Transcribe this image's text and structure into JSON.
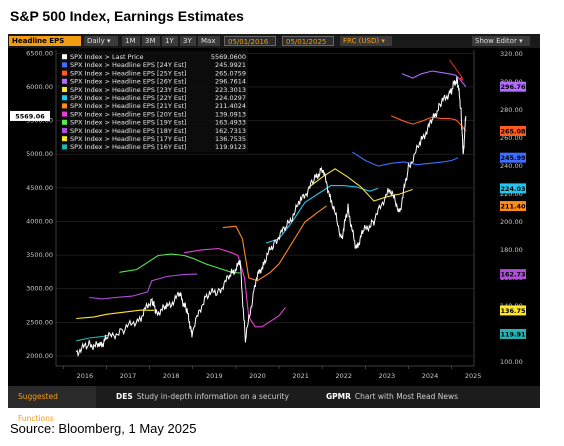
{
  "page": {
    "title": "S&P 500 Index, Earnings Estimates",
    "source": "Source: Bloomberg, 1 May 2025"
  },
  "toolbar": {
    "security": "Headline EPS",
    "period": "Daily",
    "ranges": [
      "1M",
      "3M",
      "1Y",
      "3Y",
      "Max"
    ],
    "start_date": "05/01/2016",
    "end_date": "05/01/2025",
    "currency": "FRC (USD)",
    "editor": "Show Editor"
  },
  "footer": {
    "suggested": "Suggested Functions",
    "functions": [
      {
        "code": "DES",
        "label": "Study in-depth information on a security"
      },
      {
        "code": "GPMR",
        "label": "Chart with Most Read News"
      }
    ]
  },
  "colors": {
    "background": "#000000",
    "price": "#ffffff",
    "eps24": "#3f6dff",
    "eps25": "#ff5a1f",
    "eps26": "#b26cff",
    "eps23": "#f7e33c",
    "eps22": "#1ec8f0",
    "eps21": "#ff8a1a",
    "eps20": "#e83fd6",
    "eps19": "#58e84e",
    "eps18": "#b04fd8",
    "eps17": "#ffe82a",
    "eps16": "#25b4b4"
  },
  "chart_data": {
    "type": "line",
    "x_axis": {
      "ticks": [
        "2016",
        "2017",
        "2018",
        "2019",
        "2020",
        "2021",
        "2022",
        "2023",
        "2024",
        "2025"
      ],
      "range": [
        "2016-01",
        "2025-05"
      ]
    },
    "left_axis": {
      "ticks": [
        2000,
        2500,
        3000,
        3500,
        4000,
        4500,
        5000,
        5500,
        6000,
        6500
      ],
      "range": [
        1850,
        6550
      ]
    },
    "right_axis": {
      "ticks": [
        100,
        120,
        140,
        160,
        180,
        200,
        220,
        240,
        260,
        280,
        300,
        320
      ],
      "range": [
        97,
        323
      ]
    },
    "price_label": "5569.06",
    "legend": [
      {
        "name": "SPX Index > Last Price",
        "value": "5569.0600",
        "color_key": "price"
      },
      {
        "name": "SPX Index > Headline EPS [24Y Est]",
        "value": "245.9921",
        "color_key": "eps24"
      },
      {
        "name": "SPX Index > Headline EPS [25Y Est]",
        "value": "265.0759",
        "color_key": "eps25"
      },
      {
        "name": "SPX Index > Headline EPS [26Y Est]",
        "value": "296.7614",
        "color_key": "eps26"
      },
      {
        "name": "SPX Index > Headline EPS [23Y Est]",
        "value": "223.3013",
        "color_key": "eps23"
      },
      {
        "name": "SPX Index > Headline EPS [22Y Est]",
        "value": "224.0297",
        "color_key": "eps22"
      },
      {
        "name": "SPX Index > Headline EPS [21Y Est]",
        "value": "211.4024",
        "color_key": "eps21"
      },
      {
        "name": "SPX Index > Headline EPS [20Y Est]",
        "value": "139.0913",
        "color_key": "eps20"
      },
      {
        "name": "SPX Index > Headline EPS [19Y Est]",
        "value": "163.4933",
        "color_key": "eps19"
      },
      {
        "name": "SPX Index > Headline EPS [18Y Est]",
        "value": "162.7313",
        "color_key": "eps18"
      },
      {
        "name": "SPX Index > Headline EPS [17Y Est]",
        "value": "136.7535",
        "color_key": "eps17"
      },
      {
        "name": "SPX Index > Headline EPS [16Y Est]",
        "value": "119.9123",
        "color_key": "eps16"
      }
    ],
    "right_labels": [
      {
        "text": "296.76",
        "value": 296.76,
        "color_key": "eps26"
      },
      {
        "text": "265.08",
        "value": 265.08,
        "color_key": "eps25"
      },
      {
        "text": "245.99",
        "value": 245.99,
        "color_key": "eps24"
      },
      {
        "text": "224.03",
        "value": 224.03,
        "color_key": "eps22"
      },
      {
        "text": "211.40",
        "value": 211.4,
        "color_key": "eps21"
      },
      {
        "text": "162.73",
        "value": 162.73,
        "color_key": "eps18"
      },
      {
        "text": "136.75",
        "value": 136.75,
        "color_key": "eps17"
      },
      {
        "text": "119.91",
        "value": 119.91,
        "color_key": "eps16"
      }
    ],
    "price_series": {
      "name": "SPX Index > Last Price",
      "points": [
        [
          2016.3,
          2060
        ],
        [
          2016.6,
          2170
        ],
        [
          2016.85,
          2140
        ],
        [
          2017.0,
          2260
        ],
        [
          2017.4,
          2390
        ],
        [
          2017.8,
          2580
        ],
        [
          2018.05,
          2850
        ],
        [
          2018.15,
          2640
        ],
        [
          2018.4,
          2720
        ],
        [
          2018.7,
          2910
        ],
        [
          2018.85,
          2700
        ],
        [
          2018.98,
          2350
        ],
        [
          2019.3,
          2910
        ],
        [
          2019.6,
          2960
        ],
        [
          2019.9,
          3220
        ],
        [
          2020.1,
          3380
        ],
        [
          2020.22,
          2230
        ],
        [
          2020.45,
          3100
        ],
        [
          2020.65,
          3400
        ],
        [
          2020.9,
          3700
        ],
        [
          2021.2,
          3950
        ],
        [
          2021.5,
          4300
        ],
        [
          2021.8,
          4600
        ],
        [
          2022.0,
          4790
        ],
        [
          2022.2,
          4350
        ],
        [
          2022.45,
          3750
        ],
        [
          2022.6,
          4200
        ],
        [
          2022.78,
          3580
        ],
        [
          2022.95,
          3850
        ],
        [
          2023.2,
          4000
        ],
        [
          2023.55,
          4500
        ],
        [
          2023.8,
          4150
        ],
        [
          2024.0,
          4800
        ],
        [
          2024.3,
          5200
        ],
        [
          2024.55,
          5500
        ],
        [
          2024.75,
          5750
        ],
        [
          2025.0,
          5960
        ],
        [
          2025.13,
          6140
        ],
        [
          2025.22,
          5650
        ],
        [
          2025.27,
          4980
        ],
        [
          2025.33,
          5569
        ]
      ]
    },
    "eps_series": [
      {
        "name": "SPX Index > Headline EPS [16Y Est]",
        "color_key": "eps16",
        "points": [
          [
            2016.3,
            115
          ],
          [
            2016.6,
            117
          ],
          [
            2016.9,
            118
          ],
          [
            2017.1,
            119.5
          ]
        ]
      },
      {
        "name": "SPX Index > Headline EPS [17Y Est]",
        "color_key": "eps17",
        "points": [
          [
            2016.3,
            131
          ],
          [
            2016.7,
            132
          ],
          [
            2017.0,
            134
          ],
          [
            2017.4,
            135.5
          ],
          [
            2017.8,
            137
          ],
          [
            2018.1,
            136.8
          ]
        ]
      },
      {
        "name": "SPX Index > Headline EPS [18Y Est]",
        "color_key": "eps18",
        "points": [
          [
            2016.6,
            146
          ],
          [
            2016.9,
            145
          ],
          [
            2017.2,
            146
          ],
          [
            2017.6,
            147
          ],
          [
            2017.95,
            150
          ],
          [
            2018.05,
            158
          ],
          [
            2018.4,
            161
          ],
          [
            2018.8,
            162.5
          ],
          [
            2019.1,
            162.7
          ]
        ]
      },
      {
        "name": "SPX Index > Headline EPS [19Y Est]",
        "color_key": "eps19",
        "points": [
          [
            2017.3,
            164
          ],
          [
            2017.7,
            166
          ],
          [
            2018.0,
            172
          ],
          [
            2018.2,
            176
          ],
          [
            2018.5,
            177
          ],
          [
            2018.8,
            176
          ],
          [
            2019.0,
            174
          ],
          [
            2019.3,
            170
          ],
          [
            2019.6,
            167
          ],
          [
            2019.9,
            164
          ],
          [
            2020.1,
            163.5
          ]
        ]
      },
      {
        "name": "SPX Index > Headline EPS [20Y Est]",
        "color_key": "eps20",
        "points": [
          [
            2018.8,
            178
          ],
          [
            2019.2,
            180
          ],
          [
            2019.6,
            181
          ],
          [
            2019.9,
            178
          ],
          [
            2020.05,
            176
          ],
          [
            2020.2,
            160
          ],
          [
            2020.3,
            132
          ],
          [
            2020.45,
            125
          ],
          [
            2020.6,
            125
          ],
          [
            2020.8,
            129
          ],
          [
            2021.0,
            133
          ],
          [
            2021.15,
            139
          ]
        ]
      },
      {
        "name": "SPX Index > Headline EPS [21Y Est]",
        "color_key": "eps21",
        "points": [
          [
            2019.7,
            196
          ],
          [
            2020.0,
            197
          ],
          [
            2020.15,
            188
          ],
          [
            2020.3,
            160
          ],
          [
            2020.5,
            158
          ],
          [
            2020.8,
            164
          ],
          [
            2021.0,
            170
          ],
          [
            2021.3,
            185
          ],
          [
            2021.6,
            200
          ],
          [
            2021.9,
            207
          ],
          [
            2022.1,
            211.5
          ]
        ]
      },
      {
        "name": "SPX Index > Headline EPS [22Y Est]",
        "color_key": "eps22",
        "points": [
          [
            2020.7,
            185
          ],
          [
            2021.0,
            188
          ],
          [
            2021.3,
            200
          ],
          [
            2021.6,
            214
          ],
          [
            2021.9,
            220
          ],
          [
            2022.2,
            226
          ],
          [
            2022.5,
            226
          ],
          [
            2022.8,
            225
          ],
          [
            2023.1,
            222
          ],
          [
            2023.3,
            224
          ]
        ]
      },
      {
        "name": "SPX Index > Headline EPS [23Y Est]",
        "color_key": "eps23",
        "points": [
          [
            2021.7,
            225
          ],
          [
            2022.0,
            232
          ],
          [
            2022.3,
            238
          ],
          [
            2022.6,
            232
          ],
          [
            2022.9,
            225
          ],
          [
            2023.2,
            215
          ],
          [
            2023.5,
            218
          ],
          [
            2023.8,
            220
          ],
          [
            2024.1,
            223.3
          ]
        ]
      },
      {
        "name": "SPX Index > Headline EPS [24Y Est]",
        "color_key": "eps24",
        "points": [
          [
            2022.7,
            250
          ],
          [
            2023.0,
            244
          ],
          [
            2023.3,
            240
          ],
          [
            2023.6,
            242
          ],
          [
            2023.9,
            243
          ],
          [
            2024.2,
            241
          ],
          [
            2024.5,
            242
          ],
          [
            2024.8,
            243
          ],
          [
            2025.0,
            244
          ],
          [
            2025.15,
            246
          ]
        ]
      },
      {
        "name": "SPX Index > Headline EPS [25Y Est]",
        "color_key": "eps25",
        "points": [
          [
            2023.6,
            276
          ],
          [
            2023.9,
            272
          ],
          [
            2024.1,
            270
          ],
          [
            2024.3,
            272
          ],
          [
            2024.55,
            275
          ],
          [
            2024.75,
            274
          ],
          [
            2024.95,
            274
          ],
          [
            2025.1,
            273
          ],
          [
            2025.2,
            270
          ],
          [
            2025.33,
            265.08
          ]
        ]
      },
      {
        "name": "SPX Index > Headline EPS [26Y Est]",
        "color_key": "eps26",
        "points": [
          [
            2023.85,
            306
          ],
          [
            2024.1,
            303
          ],
          [
            2024.3,
            306
          ],
          [
            2024.55,
            308
          ],
          [
            2024.75,
            307
          ],
          [
            2024.95,
            306
          ],
          [
            2025.1,
            305
          ],
          [
            2025.22,
            301
          ],
          [
            2025.33,
            296.76
          ]
        ]
      }
    ],
    "annotation": {
      "type": "arrow",
      "color": "#e8231a"
    }
  }
}
